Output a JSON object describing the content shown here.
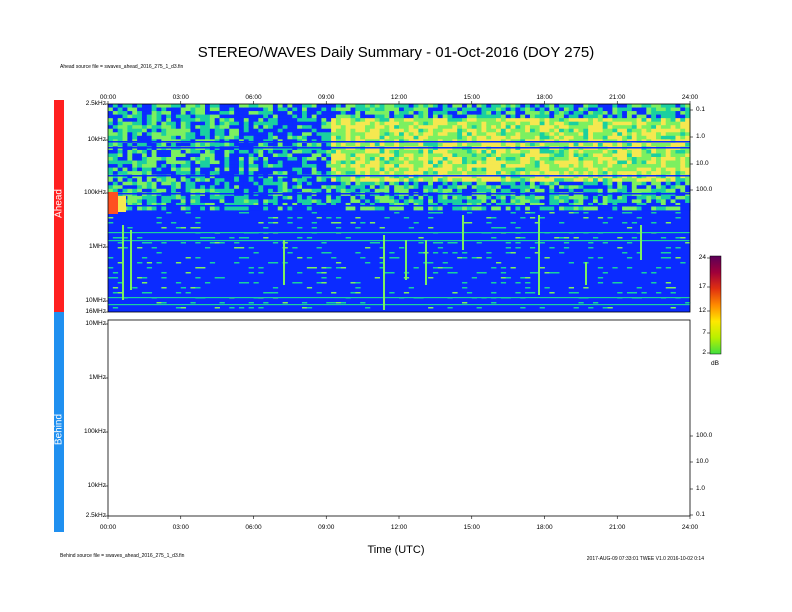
{
  "title": "STEREO/WAVES Daily Summary - 01-Oct-2016 (DOY 275)",
  "ahead_source": "Ahead source file = swaves_ahead_2016_275_1_d3.fin",
  "behind_source": "Behind source file = swaves_ahead_2016_275_1_d3.fin",
  "footer_right": "2017-AUG-09 07:33:01 TWEE V1.0 2016-10-02 0:14",
  "colorbar": {
    "unit": "dB",
    "ticks": [
      "24",
      "17",
      "12",
      "7",
      "2"
    ],
    "colors": [
      "#5a0058",
      "#a0003a",
      "#e03010",
      "#ff8a00",
      "#ffe800",
      "#b8f000",
      "#40e040"
    ]
  },
  "chart_data": [
    {
      "type": "heatmap",
      "panel": "Ahead",
      "band_color": "#ff2020",
      "x_ticks": [
        "00:00",
        "03:00",
        "06:00",
        "09:00",
        "12:00",
        "15:00",
        "18:00",
        "21:00",
        "24:00"
      ],
      "y_ticks_left": [
        "2.5kHz",
        "10kHz",
        "100kHz",
        "1MHz",
        "10MHz",
        "16MHz"
      ],
      "y_ticks_right": [
        "0.1",
        "1.0",
        "10.0",
        "100.0"
      ],
      "x_range": [
        "00:00",
        "24:00"
      ],
      "y_range": [
        "2.5kHz",
        "16MHz"
      ],
      "colors": {
        "low": "#0b2bff",
        "mid": "#1ad0a0",
        "green": "#7cf060",
        "high": "#f5e850",
        "hot": "#ff5020"
      }
    },
    {
      "type": "heatmap",
      "panel": "Behind",
      "band_color": "#2090f0",
      "x_ticks": [
        "00:00",
        "03:00",
        "06:00",
        "09:00",
        "12:00",
        "15:00",
        "18:00",
        "21:00",
        "24:00"
      ],
      "y_ticks_left": [
        "16MHz",
        "10MHz",
        "1MHz",
        "100kHz",
        "10kHz",
        "2.5kHz"
      ],
      "y_ticks_right": [
        "100.0",
        "10.0",
        "1.0",
        "0.1"
      ],
      "x_range": [
        "00:00",
        "24:00"
      ],
      "y_range": [
        "2.5kHz",
        "16MHz"
      ],
      "data": "none"
    }
  ],
  "xlabel": "Time (UTC)"
}
